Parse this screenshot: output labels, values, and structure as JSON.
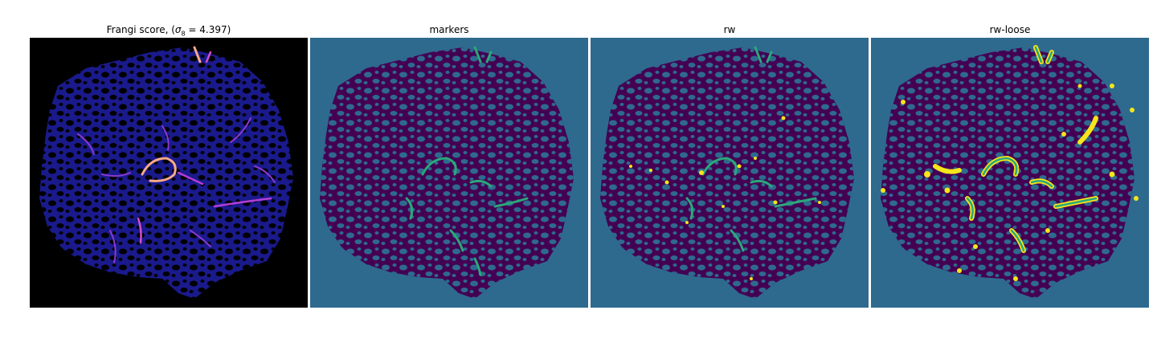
{
  "figure": {
    "panels": [
      {
        "title_prefix": "Frangi score, (",
        "title_symbol": "σ",
        "title_subscript": "8",
        "title_suffix": " = 4.397)",
        "colormap": "magma"
      },
      {
        "title": "markers",
        "colormap": "viridis"
      },
      {
        "title": "rw",
        "colormap": "viridis"
      },
      {
        "title": "rw-loose",
        "colormap": "viridis"
      }
    ]
  },
  "colors": {
    "background_black": "#000000",
    "frangi_tissue": "#1a1a8c",
    "frangi_vessel": "#b53dd6",
    "frangi_bright": "#f7a98a",
    "seg_background": "#2e6a8e",
    "seg_dark": "#440154",
    "seg_green": "#2aa97a",
    "seg_yellow": "#f5e51b"
  }
}
